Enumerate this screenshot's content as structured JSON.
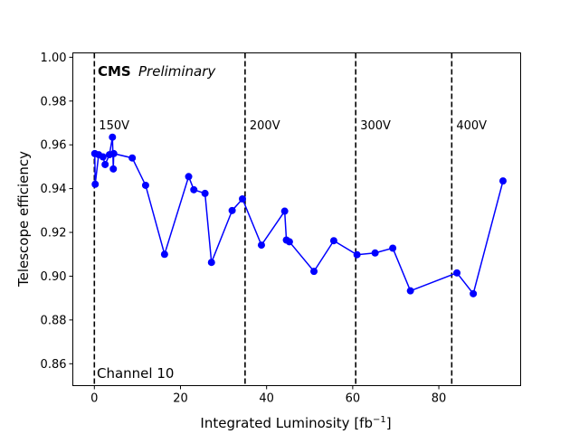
{
  "chart_data": {
    "type": "line",
    "xlabel": "Integrated Luminosity [fb",
    "xlabel_sup": "−1",
    "xlabel_close": "]",
    "ylabel": "Telescope efficiency",
    "xlim": [
      -5,
      99
    ],
    "ylim": [
      0.85,
      1.002
    ],
    "xticks": [
      0,
      20,
      40,
      60,
      80
    ],
    "yticks": [
      0.86,
      0.88,
      0.9,
      0.92,
      0.94,
      0.96,
      0.98,
      1.0
    ],
    "ytick_labels": [
      "0.86",
      "0.88",
      "0.90",
      "0.92",
      "0.94",
      "0.96",
      "0.98",
      "1.00"
    ],
    "grid": false,
    "series": [
      {
        "color": "#0000ff",
        "marker": "circle",
        "x": [
          0.1,
          0.2,
          1.0,
          2.0,
          2.5,
          3.5,
          4.2,
          4.4,
          4.5,
          8.8,
          11.9,
          16.3,
          21.9,
          23.1,
          25.7,
          27.2,
          32.0,
          34.4,
          38.8,
          44.2,
          44.6,
          45.3,
          51.0,
          55.6,
          61.0,
          65.2,
          69.3,
          73.4,
          84.2,
          88.0,
          94.9
        ],
        "y": [
          0.956,
          0.942,
          0.9555,
          0.9545,
          0.951,
          0.9555,
          0.9635,
          0.949,
          0.956,
          0.954,
          0.9415,
          0.91,
          0.9455,
          0.9395,
          0.9378,
          0.9063,
          0.93,
          0.9353,
          0.9142,
          0.9297,
          0.9165,
          0.9157,
          0.9022,
          0.9162,
          0.9098,
          0.9106,
          0.9128,
          0.8933,
          0.9015,
          0.892,
          0.9435
        ]
      }
    ],
    "vlines": [
      {
        "x": 0,
        "label": "150V"
      },
      {
        "x": 35,
        "label": "200V"
      },
      {
        "x": 60.7,
        "label": "300V"
      },
      {
        "x": 83,
        "label": "400V"
      }
    ],
    "annotations": {
      "cms": "CMS",
      "preliminary": "Preliminary",
      "channel": "Channel 10"
    }
  }
}
